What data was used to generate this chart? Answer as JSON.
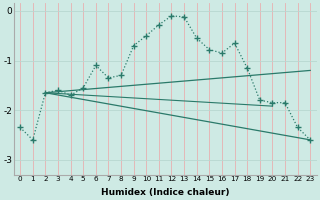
{
  "xlabel": "Humidex (Indice chaleur)",
  "background_color": "#ceeae4",
  "line_color": "#2a7a6a",
  "grid_color_v": "#e8b0b0",
  "grid_color_h": "#b8d8d0",
  "xlim": [
    -0.5,
    23.5
  ],
  "ylim": [
    -3.3,
    0.15
  ],
  "yticks": [
    0,
    -1,
    -2,
    -3
  ],
  "xticks": [
    0,
    1,
    2,
    3,
    4,
    5,
    6,
    7,
    8,
    9,
    10,
    11,
    12,
    13,
    14,
    15,
    16,
    17,
    18,
    19,
    20,
    21,
    22,
    23
  ],
  "series1_x": [
    0,
    1,
    2,
    3,
    4,
    5,
    6,
    7,
    8,
    9,
    10,
    11,
    12,
    13,
    14,
    15,
    16,
    17,
    18,
    19,
    20,
    21,
    22,
    23
  ],
  "series1_y": [
    -2.35,
    -2.6,
    -1.65,
    -1.6,
    -1.7,
    -1.55,
    -1.1,
    -1.35,
    -1.3,
    -0.7,
    -0.5,
    -0.28,
    -0.1,
    -0.12,
    -0.55,
    -0.78,
    -0.85,
    -0.65,
    -1.15,
    -1.8,
    -1.85,
    -1.85,
    -2.35,
    -2.6
  ],
  "line2_x": [
    2,
    23
  ],
  "line2_y": [
    -1.65,
    -1.2
  ],
  "line3_x": [
    2,
    23
  ],
  "line3_y": [
    -1.65,
    -2.6
  ],
  "line4_x": [
    2,
    20
  ],
  "line4_y": [
    -1.65,
    -1.92
  ]
}
